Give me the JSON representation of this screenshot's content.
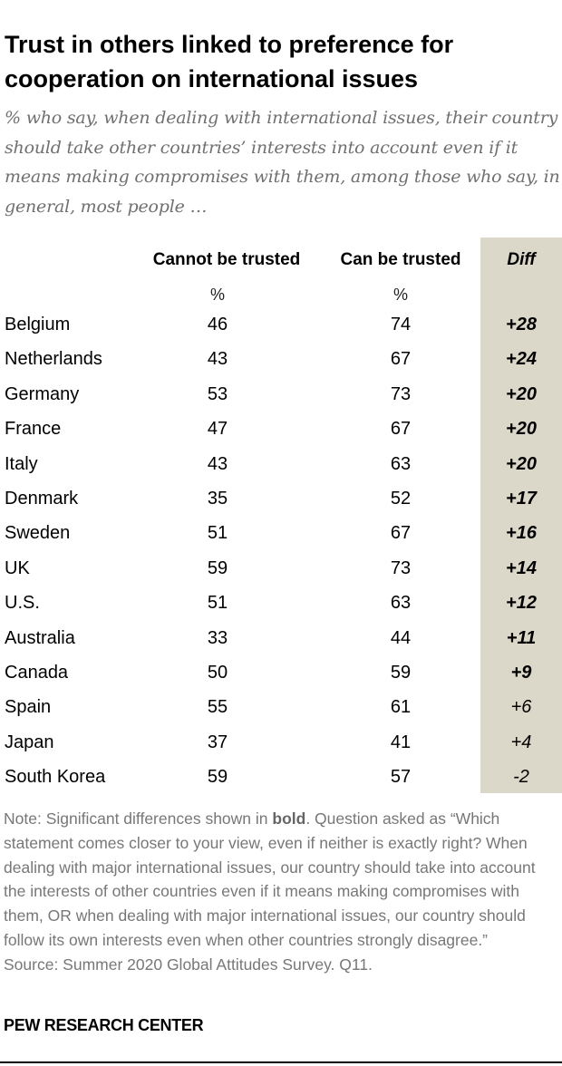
{
  "chart_data": {
    "type": "table",
    "title": "Trust in others linked to preference for cooperation on international issues",
    "subtitle": "% who say, when dealing with international issues, their country should take other countries’ interests into account even if it means making compromises with them, among those who say, in general, most people …",
    "columns": [
      "Cannot be trusted",
      "Can be trusted",
      "Diff"
    ],
    "units": [
      "%",
      "%"
    ],
    "rows": [
      {
        "country": "Belgium",
        "cannot": "46",
        "can": "74",
        "diff": "+28",
        "significant": true
      },
      {
        "country": "Netherlands",
        "cannot": "43",
        "can": "67",
        "diff": "+24",
        "significant": true
      },
      {
        "country": "Germany",
        "cannot": "53",
        "can": "73",
        "diff": "+20",
        "significant": true
      },
      {
        "country": "France",
        "cannot": "47",
        "can": "67",
        "diff": "+20",
        "significant": true
      },
      {
        "country": "Italy",
        "cannot": "43",
        "can": "63",
        "diff": "+20",
        "significant": true
      },
      {
        "country": "Denmark",
        "cannot": "35",
        "can": "52",
        "diff": "+17",
        "significant": true
      },
      {
        "country": "Sweden",
        "cannot": "51",
        "can": "67",
        "diff": "+16",
        "significant": true
      },
      {
        "country": "UK",
        "cannot": "59",
        "can": "73",
        "diff": "+14",
        "significant": true
      },
      {
        "country": "U.S.",
        "cannot": "51",
        "can": "63",
        "diff": "+12",
        "significant": true
      },
      {
        "country": "Australia",
        "cannot": "33",
        "can": "44",
        "diff": "+11",
        "significant": true
      },
      {
        "country": "Canada",
        "cannot": "50",
        "can": "59",
        "diff": "+9",
        "significant": true
      },
      {
        "country": "Spain",
        "cannot": "55",
        "can": "61",
        "diff": "+6",
        "significant": false
      },
      {
        "country": "Japan",
        "cannot": "37",
        "can": "41",
        "diff": "+4",
        "significant": false
      },
      {
        "country": "South Korea",
        "cannot": "59",
        "can": "57",
        "diff": "-2",
        "significant": false
      }
    ],
    "diff_bg": "#dcd8c9"
  },
  "note": {
    "prefix": "Note: Significant differences shown in ",
    "bold": "bold",
    "rest": ". Question asked as “Which statement comes closer to your view, even if neither is exactly right?  When dealing with major international issues, our country should take into account the interests of other countries even if it means making compromises with them, OR when dealing with major international issues, our country should follow its own interests even when other countries strongly disagree.”",
    "source": "Source: Summer 2020 Global Attitudes Survey. Q11."
  },
  "footer": "PEW RESEARCH CENTER"
}
